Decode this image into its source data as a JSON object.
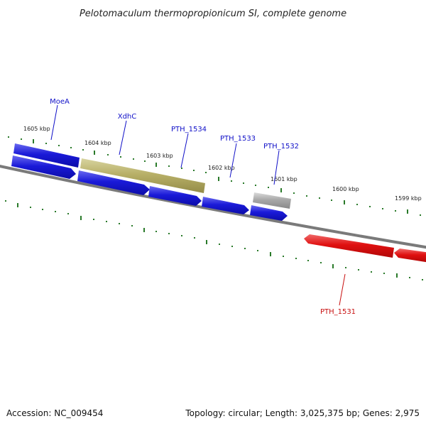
{
  "title": "Pelotomaculum thermopropionicum SI, complete genome",
  "footer": {
    "accession": "Accession: NC_009454",
    "summary": "Topology: circular; Length: 3,025,375 bp; Genes: 2,975"
  },
  "colors": {
    "forward_gene": "#1a1ad8",
    "reverse_gene": "#e01010",
    "xdh_gene": "#b8b068",
    "pseudo_gene": "#a8a8a8",
    "backbone": "#7a7a7a",
    "ticks": "#2a7a2a",
    "label_forward": "#1010c8",
    "label_reverse": "#c81010"
  },
  "scale": {
    "ticks": [
      {
        "label": "1605 kbp"
      },
      {
        "label": "1604 kbp"
      },
      {
        "label": "1603 kbp"
      },
      {
        "label": "1602 kbp"
      },
      {
        "label": "1601 kbp"
      },
      {
        "label": "1600 kbp"
      },
      {
        "label": "1599 kbp"
      }
    ]
  },
  "genes": [
    {
      "name": "MoeA",
      "strand": "forward"
    },
    {
      "name": "XdhC",
      "strand": "forward"
    },
    {
      "name": "PTH_1534",
      "strand": "forward"
    },
    {
      "name": "PTH_1533",
      "strand": "forward"
    },
    {
      "name": "PTH_1532",
      "strand": "forward"
    },
    {
      "name": "PTH_1531",
      "strand": "reverse"
    }
  ]
}
